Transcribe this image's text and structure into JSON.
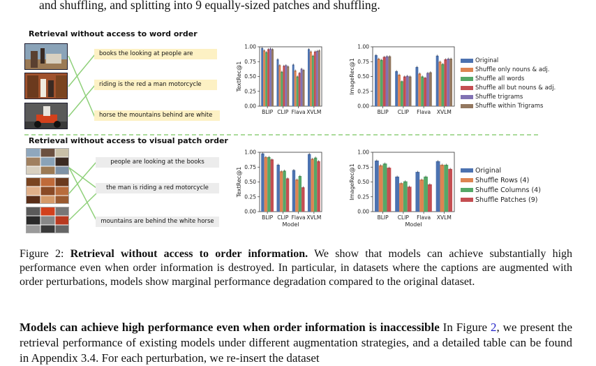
{
  "top_text": "and shuffling, and splitting into 9 equally-sized patches and shuffling.",
  "word_section": {
    "title": "Retrieval without access to word order",
    "captions": [
      "books the looking at people are",
      "riding is the red a man motorcycle",
      "horse the mountains behind are white"
    ],
    "image_icons": [
      "photo-people-horse",
      "photo-people-books",
      "photo-man-motorcycle"
    ]
  },
  "patch_section": {
    "title": "Retrieval without access to visual patch order",
    "captions": [
      "people are looking at the books",
      "the man is riding a red motorcycle",
      "mountains are behind the white horse"
    ],
    "image_icons": [
      "photo-shuffled-patches-1",
      "photo-shuffled-patches-2",
      "photo-shuffled-patches-3"
    ]
  },
  "chart_data": [
    {
      "type": "bar",
      "ylabel": "TextRec@1",
      "xlabel": "",
      "categories": [
        "BLIP",
        "CLIP",
        "Flava",
        "XVLM"
      ],
      "ylim": [
        0,
        1
      ],
      "yticks": [
        "0.00",
        "0.25",
        "0.50",
        "0.75",
        "1.00"
      ],
      "series": [
        {
          "name": "Original",
          "color": "#4c72b0",
          "values": [
            0.98,
            0.79,
            0.7,
            0.96
          ]
        },
        {
          "name": "Shuffle only nouns & adj.",
          "color": "#dd8452",
          "values": [
            0.94,
            0.69,
            0.6,
            0.92
          ]
        },
        {
          "name": "Shuffle all words",
          "color": "#55a868",
          "values": [
            0.91,
            0.58,
            0.5,
            0.85
          ]
        },
        {
          "name": "Shuffle all but nouns & adj.",
          "color": "#c44e52",
          "values": [
            0.96,
            0.68,
            0.56,
            0.92
          ]
        },
        {
          "name": "Shuffle trigrams",
          "color": "#8172b3",
          "values": [
            0.97,
            0.69,
            0.63,
            0.93
          ]
        },
        {
          "name": "Shuffle within Trigrams",
          "color": "#937860",
          "values": [
            0.96,
            0.67,
            0.61,
            0.94
          ]
        }
      ]
    },
    {
      "type": "bar",
      "ylabel": "ImageRec@1",
      "xlabel": "",
      "categories": [
        "BLIP",
        "CLIP",
        "Flava",
        "XVLM"
      ],
      "ylim": [
        0,
        1
      ],
      "yticks": [
        "0.00",
        "0.25",
        "0.50",
        "0.75",
        "1.00"
      ],
      "series": [
        {
          "name": "Original",
          "color": "#4c72b0",
          "values": [
            0.86,
            0.59,
            0.66,
            0.85
          ]
        },
        {
          "name": "Shuffle only nouns & adj.",
          "color": "#dd8452",
          "values": [
            0.8,
            0.53,
            0.55,
            0.75
          ]
        },
        {
          "name": "Shuffle all words",
          "color": "#55a868",
          "values": [
            0.78,
            0.42,
            0.5,
            0.71
          ]
        },
        {
          "name": "Shuffle all but nouns & adj.",
          "color": "#c44e52",
          "values": [
            0.83,
            0.5,
            0.48,
            0.79
          ]
        },
        {
          "name": "Shuffle trigrams",
          "color": "#8172b3",
          "values": [
            0.84,
            0.51,
            0.56,
            0.8
          ]
        },
        {
          "name": "Shuffle within Trigrams",
          "color": "#937860",
          "values": [
            0.84,
            0.5,
            0.57,
            0.8
          ]
        }
      ],
      "legend": "right"
    },
    {
      "type": "bar",
      "ylabel": "TextRec@1",
      "xlabel": "Model",
      "categories": [
        "BLIP",
        "CLIP",
        "Flava",
        "XVLM"
      ],
      "ylim": [
        0,
        1
      ],
      "yticks": [
        "0.00",
        "0.25",
        "0.50",
        "0.75",
        "1.00"
      ],
      "series": [
        {
          "name": "Original",
          "color": "#4c72b0",
          "values": [
            0.98,
            0.79,
            0.7,
            0.97
          ]
        },
        {
          "name": "Shuffle Rows (4)",
          "color": "#dd8452",
          "values": [
            0.92,
            0.68,
            0.54,
            0.89
          ]
        },
        {
          "name": "Shuffle Columns (4)",
          "color": "#55a868",
          "values": [
            0.92,
            0.69,
            0.6,
            0.91
          ]
        },
        {
          "name": "Shuffle Patches (9)",
          "color": "#c44e52",
          "values": [
            0.88,
            0.56,
            0.41,
            0.85
          ]
        }
      ]
    },
    {
      "type": "bar",
      "ylabel": "ImageRec@1",
      "xlabel": "Model",
      "categories": [
        "BLIP",
        "CLIP",
        "Flava",
        "XVLM"
      ],
      "ylim": [
        0,
        1
      ],
      "yticks": [
        "0.00",
        "0.25",
        "0.50",
        "0.75",
        "1.00"
      ],
      "series": [
        {
          "name": "Original",
          "color": "#4c72b0",
          "values": [
            0.86,
            0.59,
            0.67,
            0.85
          ]
        },
        {
          "name": "Shuffle Rows (4)",
          "color": "#dd8452",
          "values": [
            0.78,
            0.48,
            0.54,
            0.79
          ]
        },
        {
          "name": "Shuffle Columns (4)",
          "color": "#55a868",
          "values": [
            0.81,
            0.51,
            0.59,
            0.79
          ]
        },
        {
          "name": "Shuffle Patches (9)",
          "color": "#c44e52",
          "values": [
            0.74,
            0.42,
            0.46,
            0.72
          ]
        }
      ],
      "legend": "right"
    }
  ],
  "caption": {
    "label": "Figure 2:",
    "bold": "Retrieval without access to order information.",
    "text": "We show that models can achieve substantially high performance even when order information is destroyed. In particular, in datasets where the captions are augmented with order perturbations, models show marginal performance degradation compared to the original dataset."
  },
  "paragraph": {
    "bold": "Models can achieve high performance even when order information is inaccessible",
    "lead": "In Figure",
    "ref": "2",
    "text": ", we present the retrieval performance of existing models under different augmentation strategies, and a detailed table can be found in Appendix 3.4. For each perturbation, we re-insert the dataset"
  }
}
